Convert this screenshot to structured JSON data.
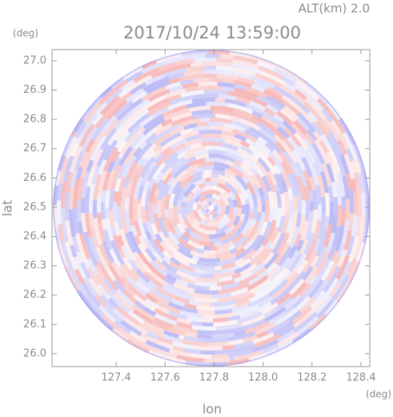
{
  "chart_data": {
    "type": "radar-ppi",
    "title": "2017/10/24 13:59:00",
    "annotation": "ALT(km) 2.0",
    "x_unit": "(deg)",
    "y_unit": "(deg)",
    "x_label": "lon",
    "y_label": "lat",
    "xlim": [
      127.138,
      128.436
    ],
    "ylim": [
      25.956,
      27.038
    ],
    "xticks": [
      127.4,
      127.6,
      127.8,
      {
        "value": 128,
        "label": "128.0"
      },
      128.2,
      128.4
    ],
    "yticks": [
      {
        "value": 26,
        "label": "26.0"
      },
      26.1,
      26.2,
      26.3,
      26.4,
      26.5,
      26.6,
      26.7,
      26.8,
      26.9,
      {
        "value": 27,
        "label": "27.0"
      }
    ]
  }
}
